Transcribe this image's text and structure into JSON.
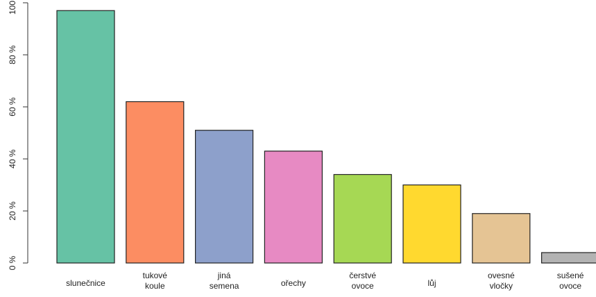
{
  "chart_data": {
    "type": "bar",
    "categories": [
      "slunečnice",
      "tukové\nkoule",
      "jiná\nsemena",
      "ořechy",
      "čerstvé\novoce",
      "lůj",
      "ovesné\nvločky",
      "sušené\novoce"
    ],
    "values": [
      97,
      62,
      51,
      43,
      34,
      30,
      19,
      4
    ],
    "colors": [
      "#66c2a5",
      "#fc8d62",
      "#8da0cb",
      "#e78ac3",
      "#a6d854",
      "#ffd92f",
      "#e5c494",
      "#b3b3b3"
    ],
    "ylim": [
      0,
      100
    ],
    "yticks": [
      {
        "value": 0,
        "label": "0 %"
      },
      {
        "value": 20,
        "label": "20 %"
      },
      {
        "value": 40,
        "label": "40 %"
      },
      {
        "value": 60,
        "label": "60 %"
      },
      {
        "value": 80,
        "label": "80 %"
      },
      {
        "value": 100,
        "label": "100 %"
      }
    ]
  }
}
